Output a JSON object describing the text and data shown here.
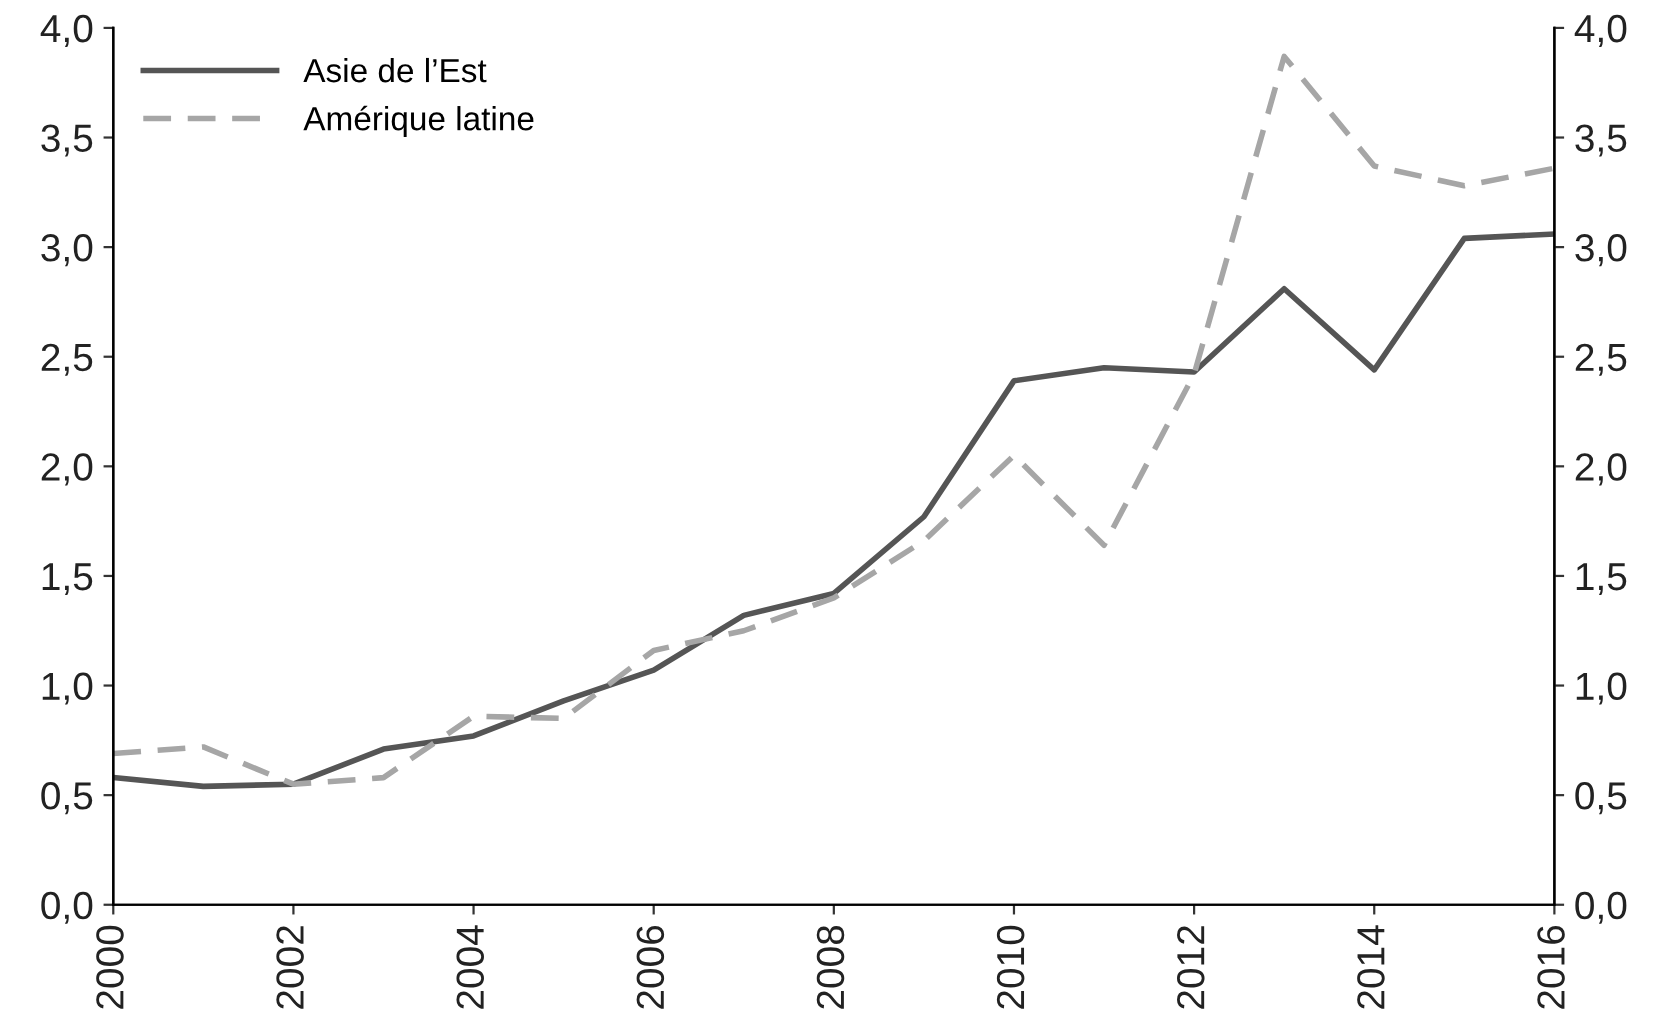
{
  "chart_data": {
    "type": "line",
    "x": [
      2000,
      2001,
      2002,
      2003,
      2004,
      2005,
      2006,
      2007,
      2008,
      2009,
      2010,
      2011,
      2012,
      2013,
      2014,
      2015,
      2016
    ],
    "series": [
      {
        "name": "Asie de l’Est",
        "color": "#555555",
        "line_style": "solid",
        "values": [
          0.58,
          0.54,
          0.55,
          0.71,
          0.77,
          0.93,
          1.07,
          1.32,
          1.42,
          1.77,
          2.39,
          2.45,
          2.43,
          2.81,
          2.44,
          3.04,
          3.06
        ]
      },
      {
        "name": "Amérique latine",
        "color": "#a6a6a6",
        "line_style": "dashed",
        "values": [
          0.69,
          0.72,
          0.55,
          0.58,
          0.86,
          0.85,
          1.16,
          1.25,
          1.4,
          1.66,
          2.05,
          1.64,
          2.42,
          3.87,
          3.37,
          3.28,
          3.36
        ]
      }
    ],
    "xlim": [
      2000,
      2016
    ],
    "xticks": [
      2000,
      2002,
      2004,
      2006,
      2008,
      2010,
      2012,
      2014,
      2016
    ],
    "ylim": [
      0,
      4
    ],
    "yticks": [
      {
        "value": 0,
        "label": "0,0"
      },
      {
        "value": 0.5,
        "label": "0,5"
      },
      {
        "value": 1,
        "label": "1,0"
      },
      {
        "value": 1.5,
        "label": "1,5"
      },
      {
        "value": 2,
        "label": "2,0"
      },
      {
        "value": 2.5,
        "label": "2,5"
      },
      {
        "value": 3,
        "label": "3,0"
      },
      {
        "value": 3.5,
        "label": "3,5"
      },
      {
        "value": 4,
        "label": "4,0"
      }
    ],
    "y2lim": [
      0,
      4
    ],
    "y2ticks": [
      {
        "value": 0,
        "label": "0,0"
      },
      {
        "value": 0.5,
        "label": "0,5"
      },
      {
        "value": 1,
        "label": "1,0"
      },
      {
        "value": 1.5,
        "label": "1,5"
      },
      {
        "value": 2,
        "label": "2,0"
      },
      {
        "value": 2.5,
        "label": "2,5"
      },
      {
        "value": 3,
        "label": "3,0"
      },
      {
        "value": 3.5,
        "label": "3,5"
      },
      {
        "value": 4,
        "label": "4,0"
      }
    ],
    "grid": false,
    "legend": "top left",
    "marker": "none"
  }
}
